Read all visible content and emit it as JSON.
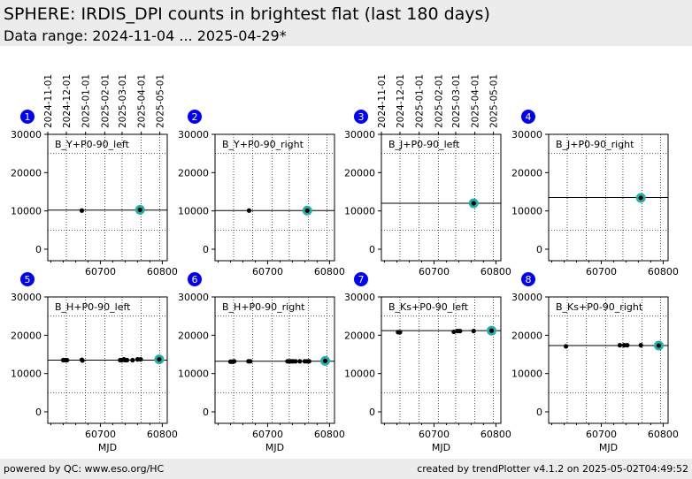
{
  "header": {
    "title": "SPHERE: IRDIS_DPI counts in brightest flat (last 180 days)",
    "subtitle": "Data range: 2024-11-04 ... 2025-04-29*"
  },
  "footer": {
    "left": "powered by QC: www.eso.org/HC",
    "right": "created by trendPlotter v4.1.2 on 2025-05-02T04:49:52"
  },
  "colors": {
    "badge": "#0000ff",
    "point": "#000000",
    "highlight": "#20b2aa"
  },
  "chart_data": [
    {
      "type": "scatter",
      "index": "1",
      "label": "B_Y+P0-90_left",
      "xlim": [
        60615,
        60808
      ],
      "ylim": [
        -3000,
        30000
      ],
      "xticks": [
        60700,
        60800
      ],
      "yticks": [
        0,
        10000,
        20000,
        30000
      ],
      "date_ticks": [
        "2024-11-01",
        "2024-12-01",
        "2025-01-01",
        "2025-02-01",
        "2025-03-01",
        "2025-04-01",
        "2025-05-01"
      ],
      "date_tick_mjd": [
        60615,
        60645,
        60676,
        60707,
        60735,
        60766,
        60796
      ],
      "ref_line": 10200,
      "limits": [
        5000,
        25000
      ],
      "points": [
        [
          60670,
          10100
        ],
        [
          60764,
          10300
        ]
      ],
      "highlight": [
        60764,
        10300
      ]
    },
    {
      "type": "scatter",
      "index": "2",
      "label": "B_Y+P0-90_right",
      "xlim": [
        60615,
        60808
      ],
      "ylim": [
        -3000,
        30000
      ],
      "xticks": [
        60700,
        60800
      ],
      "yticks": [
        0,
        10000,
        20000,
        30000
      ],
      "ref_line": 10100,
      "limits": [
        5000,
        25000
      ],
      "points": [
        [
          60670,
          10100
        ],
        [
          60764,
          10100
        ]
      ],
      "highlight": [
        60764,
        10100
      ]
    },
    {
      "type": "scatter",
      "index": "3",
      "label": "B_J+P0-90_left",
      "xlim": [
        60615,
        60808
      ],
      "ylim": [
        -3000,
        30000
      ],
      "xticks": [
        60700,
        60800
      ],
      "yticks": [
        0,
        10000,
        20000,
        30000
      ],
      "date_ticks": [
        "2024-11-01",
        "2024-12-01",
        "2025-01-01",
        "2025-02-01",
        "2025-03-01",
        "2025-04-01",
        "2025-05-01"
      ],
      "date_tick_mjd": [
        60615,
        60645,
        60676,
        60707,
        60735,
        60766,
        60796
      ],
      "ref_line": 12000,
      "limits": [
        5000,
        25000
      ],
      "points": [
        [
          60764,
          12000
        ]
      ],
      "highlight": [
        60764,
        12000
      ]
    },
    {
      "type": "scatter",
      "index": "4",
      "label": "B_J+P0-90_right",
      "xlim": [
        60615,
        60808
      ],
      "ylim": [
        -3000,
        30000
      ],
      "xticks": [
        60700,
        60800
      ],
      "yticks": [
        0,
        10000,
        20000,
        30000
      ],
      "ref_line": 13500,
      "limits": [
        5000,
        25000
      ],
      "points": [
        [
          60764,
          13400
        ]
      ],
      "highlight": [
        60764,
        13400
      ]
    },
    {
      "type": "scatter",
      "index": "5",
      "label": "B_H+P0-90_left",
      "xlabel": "MJD",
      "xlim": [
        60615,
        60808
      ],
      "ylim": [
        -3000,
        30000
      ],
      "xticks": [
        60700,
        60800
      ],
      "yticks": [
        0,
        10000,
        20000,
        30000
      ],
      "ref_line": 13500,
      "limits": [
        5000,
        25000
      ],
      "points": [
        [
          60640,
          13500
        ],
        [
          60643,
          13500
        ],
        [
          60646,
          13500
        ],
        [
          60670,
          13600
        ],
        [
          60671,
          13400
        ],
        [
          60732,
          13500
        ],
        [
          60735,
          13500
        ],
        [
          60738,
          13700
        ],
        [
          60740,
          13500
        ],
        [
          60743,
          13500
        ],
        [
          60752,
          13500
        ],
        [
          60760,
          13700
        ],
        [
          60765,
          13700
        ],
        [
          60795,
          13700
        ]
      ],
      "highlight": [
        60795,
        13700
      ]
    },
    {
      "type": "scatter",
      "index": "6",
      "label": "B_H+P0-90_right",
      "xlabel": "MJD",
      "xlim": [
        60615,
        60808
      ],
      "ylim": [
        -3000,
        30000
      ],
      "xticks": [
        60700,
        60800
      ],
      "yticks": [
        0,
        10000,
        20000,
        30000
      ],
      "ref_line": 13200,
      "limits": [
        5000,
        25000
      ],
      "points": [
        [
          60640,
          13100
        ],
        [
          60643,
          13100
        ],
        [
          60646,
          13200
        ],
        [
          60669,
          13200
        ],
        [
          60672,
          13200
        ],
        [
          60732,
          13200
        ],
        [
          60735,
          13200
        ],
        [
          60738,
          13200
        ],
        [
          60741,
          13200
        ],
        [
          60745,
          13200
        ],
        [
          60752,
          13200
        ],
        [
          60760,
          13200
        ],
        [
          60764,
          13200
        ],
        [
          60767,
          13200
        ],
        [
          60793,
          13300
        ]
      ],
      "highlight": [
        60793,
        13300
      ]
    },
    {
      "type": "scatter",
      "index": "7",
      "label": "B_Ks+P0-90_left",
      "xlabel": "MJD",
      "xlim": [
        60615,
        60808
      ],
      "ylim": [
        -3000,
        30000
      ],
      "xticks": [
        60700,
        60800
      ],
      "yticks": [
        0,
        10000,
        20000,
        30000
      ],
      "ref_line": 21200,
      "limits": [
        5000,
        25000
      ],
      "points": [
        [
          60642,
          20800
        ],
        [
          60645,
          20800
        ],
        [
          60732,
          20900
        ],
        [
          60738,
          21100
        ],
        [
          60742,
          21100
        ],
        [
          60764,
          21100
        ],
        [
          60793,
          21200
        ]
      ],
      "highlight": [
        60793,
        21200
      ]
    },
    {
      "type": "scatter",
      "index": "8",
      "label": "B_Ks+P0-90_right",
      "xlabel": "MJD",
      "xlim": [
        60615,
        60808
      ],
      "ylim": [
        -3000,
        30000
      ],
      "xticks": [
        60700,
        60800
      ],
      "yticks": [
        0,
        10000,
        20000,
        30000
      ],
      "ref_line": 17300,
      "limits": [
        5000,
        25000
      ],
      "points": [
        [
          60643,
          17100
        ],
        [
          60730,
          17400
        ],
        [
          60737,
          17400
        ],
        [
          60742,
          17400
        ],
        [
          60764,
          17400
        ],
        [
          60793,
          17300
        ]
      ],
      "highlight": [
        60793,
        17300
      ]
    }
  ]
}
